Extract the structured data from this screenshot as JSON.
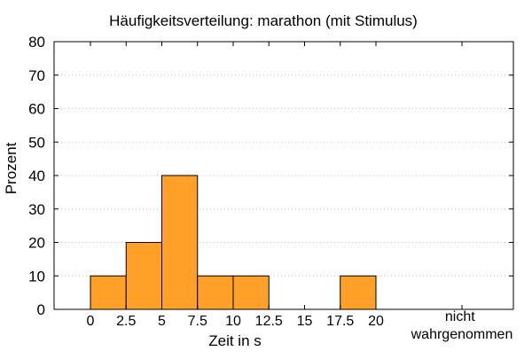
{
  "chart_data": {
    "type": "bar",
    "title": "Häufigkeitsverteilung: marathon (mit Stimulus)",
    "xlabel": "Zeit in s",
    "ylabel": "Prozent",
    "ylim": [
      0,
      80
    ],
    "yticks": [
      "0",
      "10",
      "20",
      "30",
      "40",
      "50",
      "60",
      "70",
      "80"
    ],
    "xticks": [
      "0",
      "2.5",
      "5",
      "7.5",
      "10",
      "12.5",
      "15",
      "17.5",
      "20"
    ],
    "extra_category_label": [
      "nicht",
      "wahrgenommen"
    ],
    "bin_width": 2.5,
    "bins": [
      {
        "start": 0,
        "end": 2.5,
        "value": 10
      },
      {
        "start": 2.5,
        "end": 5,
        "value": 20
      },
      {
        "start": 5,
        "end": 7.5,
        "value": 40
      },
      {
        "start": 7.5,
        "end": 10,
        "value": 10
      },
      {
        "start": 10,
        "end": 12.5,
        "value": 10
      },
      {
        "start": 12.5,
        "end": 15,
        "value": 0
      },
      {
        "start": 15,
        "end": 17.5,
        "value": 0
      },
      {
        "start": 17.5,
        "end": 20,
        "value": 10
      }
    ],
    "not_perceived_value": 0,
    "grid": true,
    "bar_color": "#FFA029",
    "bar_edge_color": "#000000",
    "grid_color": "#BFBFBF"
  }
}
